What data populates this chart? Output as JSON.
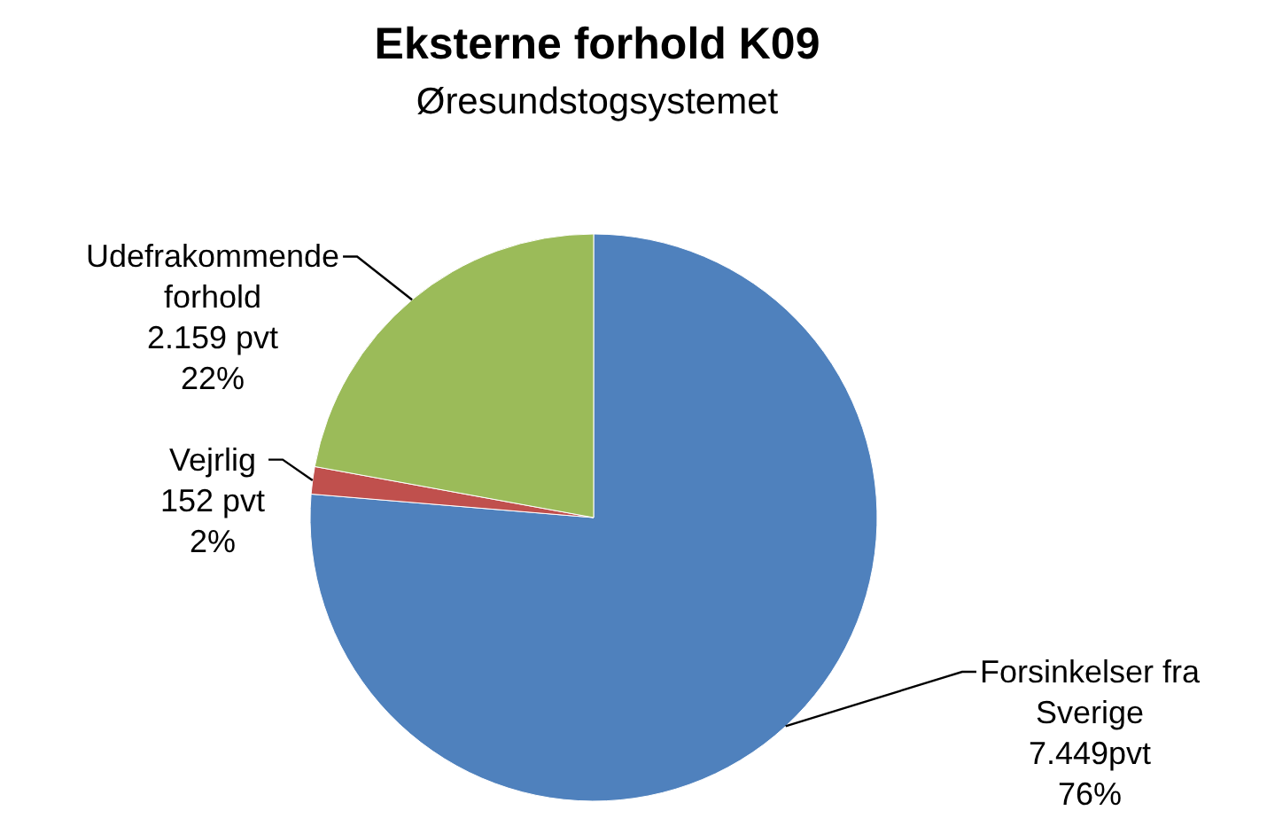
{
  "chart_data": {
    "type": "pie",
    "title": "Eksterne forhold K09",
    "subtitle": "Øresundstogsystemet",
    "categories": [
      "Forsinkelser fra Sverige",
      "Vejrlig",
      "Udefrakommende forhold"
    ],
    "values": [
      7449,
      152,
      2159
    ],
    "value_labels": [
      "7.449pvt\n76%",
      "152 pvt\n2%",
      "2.159 pvt\n22%"
    ],
    "colors": [
      "#4f81bd",
      "#c0504d",
      "#9bbb59"
    ]
  }
}
